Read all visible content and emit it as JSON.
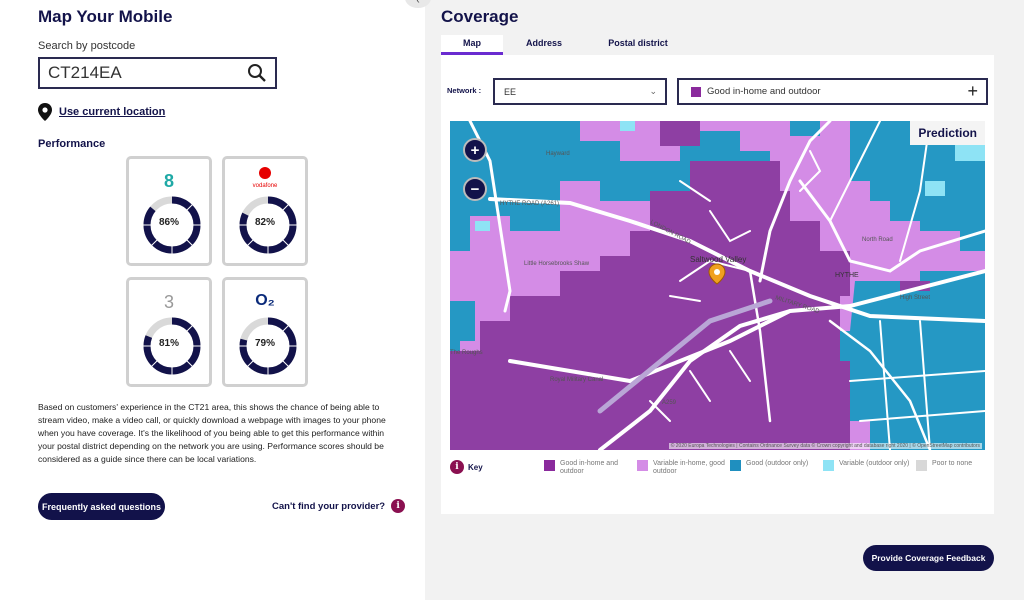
{
  "app": {
    "title": "Map Your Mobile",
    "search_label": "Search by postcode",
    "postcode": "CT214EA",
    "use_location": "Use current location",
    "performance_label": "Performance"
  },
  "operators": [
    {
      "name": "EE",
      "logo_text": "8",
      "percent": 86,
      "label": "86%",
      "color": "#1fa9a6"
    },
    {
      "name": "Vodafone",
      "logo_text": "vodafone",
      "percent": 82,
      "label": "82%",
      "color": "#e60000"
    },
    {
      "name": "Three",
      "logo_text": "3",
      "percent": 81,
      "label": "81%",
      "color": "#999999"
    },
    {
      "name": "O2",
      "logo_text": "O₂",
      "percent": 79,
      "label": "79%",
      "color": "#0a2a7a"
    }
  ],
  "description": "Based on customers' experience in the CT21 area, this shows the chance of being able to stream video, make a video call, or quickly download a webpage with images to your phone when you have coverage. It's the likelihood of you being able to get this performance within your postal district depending on the network you are using. Performance scores should be considered as a guide since there can be local variations.",
  "faq_button": "Frequently asked questions",
  "cant_find": "Can't find your provider?",
  "coverage": {
    "title": "Coverage",
    "tabs": [
      "Map",
      "Address",
      "Postal district"
    ],
    "network_label": "Network :",
    "network_value": "EE",
    "filter_value": "Good in-home and outdoor",
    "prediction": "Prediction",
    "map_labels": [
      "Hayward",
      "HYTHE ROAD (A261)",
      "LONDON ROAD",
      "Little Horsebrooks Shaw",
      "Saltwood Valley",
      "HYTHE",
      "MILITARY ROAD",
      "Royal Military Canal",
      "The Roughs",
      "A259",
      "North Road",
      "High Street"
    ],
    "attribution": "© 2020 Europa Technologies | Contains Ordnance Survey data © Crown copyright and database right 2020 | © OpenStreetMap contributors",
    "key_label": "Key",
    "key": [
      {
        "label": "Good in-home and outdoor",
        "color": "#8a2a9c"
      },
      {
        "label": "Variable in-home, good outdoor",
        "color": "#d48ce6"
      },
      {
        "label": "Good (outdoor only)",
        "color": "#1f8fbf"
      },
      {
        "label": "Variable (outdoor only)",
        "color": "#8ee3f5"
      },
      {
        "label": "Poor to none",
        "color": "#d8d8d8"
      }
    ]
  },
  "feedback_button": "Provide Coverage Feedback"
}
